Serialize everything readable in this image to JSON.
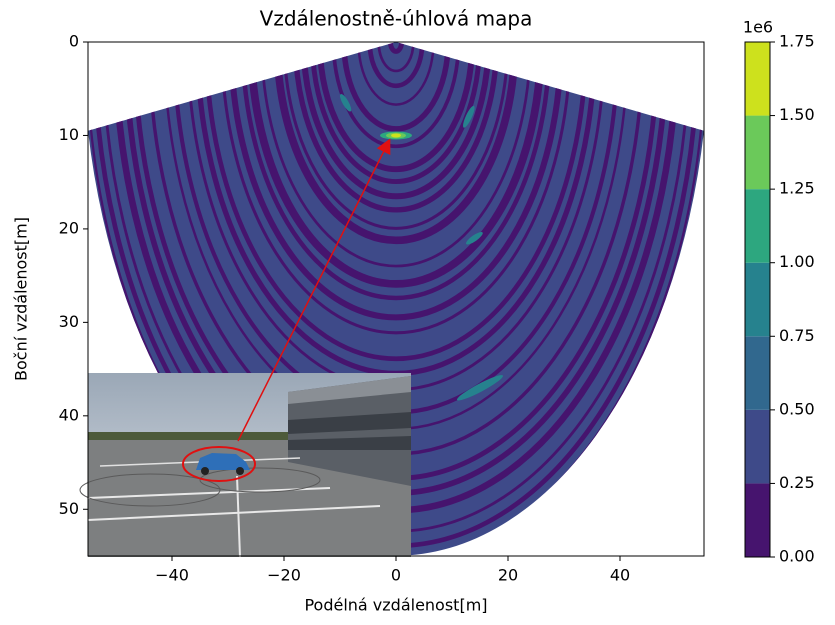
{
  "chart_data": {
    "type": "heatmap",
    "title": "Vzdálenostně-úhlová mapa",
    "xlabel": "Podélná vzdálenost[m]",
    "ylabel": "Boční vzdálenost[m]",
    "xlim": [
      -55,
      55
    ],
    "xticks": [
      {
        "value": -40,
        "label": "−40"
      },
      {
        "value": -20,
        "label": "−20"
      },
      0,
      20,
      40
    ],
    "ylim": [
      0,
      55
    ],
    "y_inverted": true,
    "yticks": [
      0,
      10,
      20,
      30,
      40,
      50
    ],
    "colorbar": {
      "offset_label": "1e6",
      "lim": [
        0,
        1.75
      ],
      "ticks": [
        {
          "value": 0,
          "label": "0.00"
        },
        0.25,
        {
          "value": 0.5,
          "label": "0.50"
        },
        0.75,
        {
          "value": 1,
          "label": "1.00"
        },
        1.25,
        {
          "value": 1.5,
          "label": "1.50"
        },
        1.75
      ],
      "colors": [
        "#46146e",
        "#3e4a89",
        "#31688e",
        "#26828e",
        "#2da77f",
        "#6bc95a",
        "#cde11d"
      ]
    }
  }
}
